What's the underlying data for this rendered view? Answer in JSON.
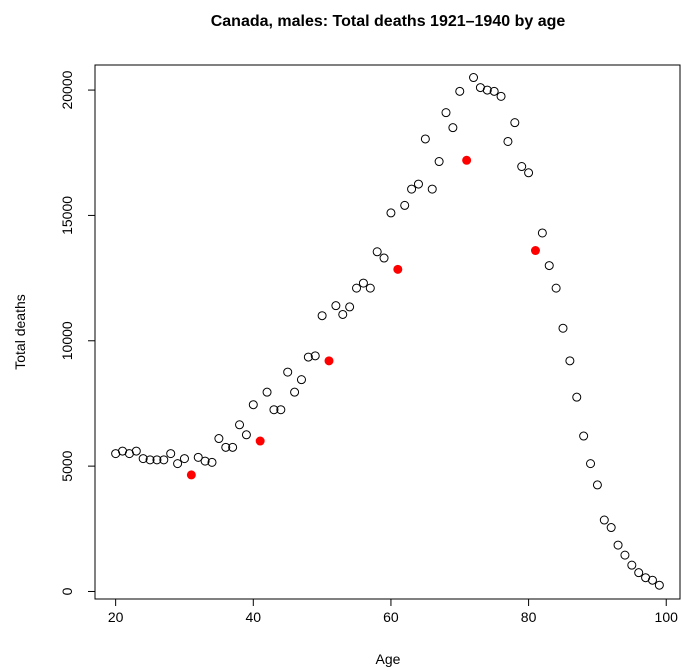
{
  "chart_data": {
    "type": "scatter",
    "title": "Canada, males: Total deaths 1921–1940 by age",
    "xlabel": "Age",
    "ylabel": "Total deaths",
    "xlim": [
      17,
      102
    ],
    "ylim": [
      -300,
      21000
    ],
    "x_ticks": [
      20,
      40,
      60,
      80,
      100
    ],
    "y_ticks": [
      0,
      5000,
      10000,
      15000,
      20000
    ],
    "grid": false,
    "highlight_color": "#ff0000",
    "series": [
      {
        "marker": "open-circle",
        "color": "#000000",
        "x": [
          20,
          21,
          22,
          23,
          24,
          25,
          26,
          27,
          28,
          29,
          30,
          32,
          33,
          34,
          35,
          36,
          37,
          38,
          39,
          40,
          42,
          43,
          44,
          45,
          46,
          47,
          48,
          49,
          50,
          52,
          53,
          54,
          55,
          56,
          57,
          58,
          59,
          60,
          62,
          63,
          64,
          65,
          66,
          67,
          68,
          69,
          70,
          72,
          73,
          74,
          75,
          76,
          77,
          78,
          79,
          80,
          82,
          83,
          84,
          85,
          86,
          87,
          88,
          89,
          90,
          91,
          92,
          93,
          94,
          95,
          96,
          97,
          98,
          99
        ],
        "y": [
          5500,
          5600,
          5500,
          5600,
          5300,
          5250,
          5250,
          5250,
          5500,
          5100,
          5300,
          5350,
          5200,
          5150,
          6100,
          5750,
          5750,
          6650,
          6250,
          7450,
          7950,
          7250,
          7250,
          8750,
          7950,
          8450,
          9350,
          9400,
          11000,
          11400,
          11050,
          11350,
          12100,
          12300,
          12100,
          13550,
          13300,
          15100,
          15400,
          16050,
          16250,
          18050,
          16050,
          17150,
          19100,
          18500,
          19950,
          20500,
          20100,
          20000,
          19950,
          19750,
          17950,
          18700,
          16950,
          16700,
          14300,
          13000,
          12100,
          10500,
          9200,
          7750,
          6200,
          5100,
          4250,
          2850,
          2550,
          1850,
          1450,
          1050,
          750,
          550,
          450,
          250
        ]
      },
      {
        "marker": "filled-circle",
        "color": "#ff0000",
        "x": [
          31,
          41,
          51,
          61,
          71,
          81
        ],
        "y": [
          4650,
          6000,
          9200,
          12850,
          17200,
          13600
        ]
      }
    ]
  }
}
